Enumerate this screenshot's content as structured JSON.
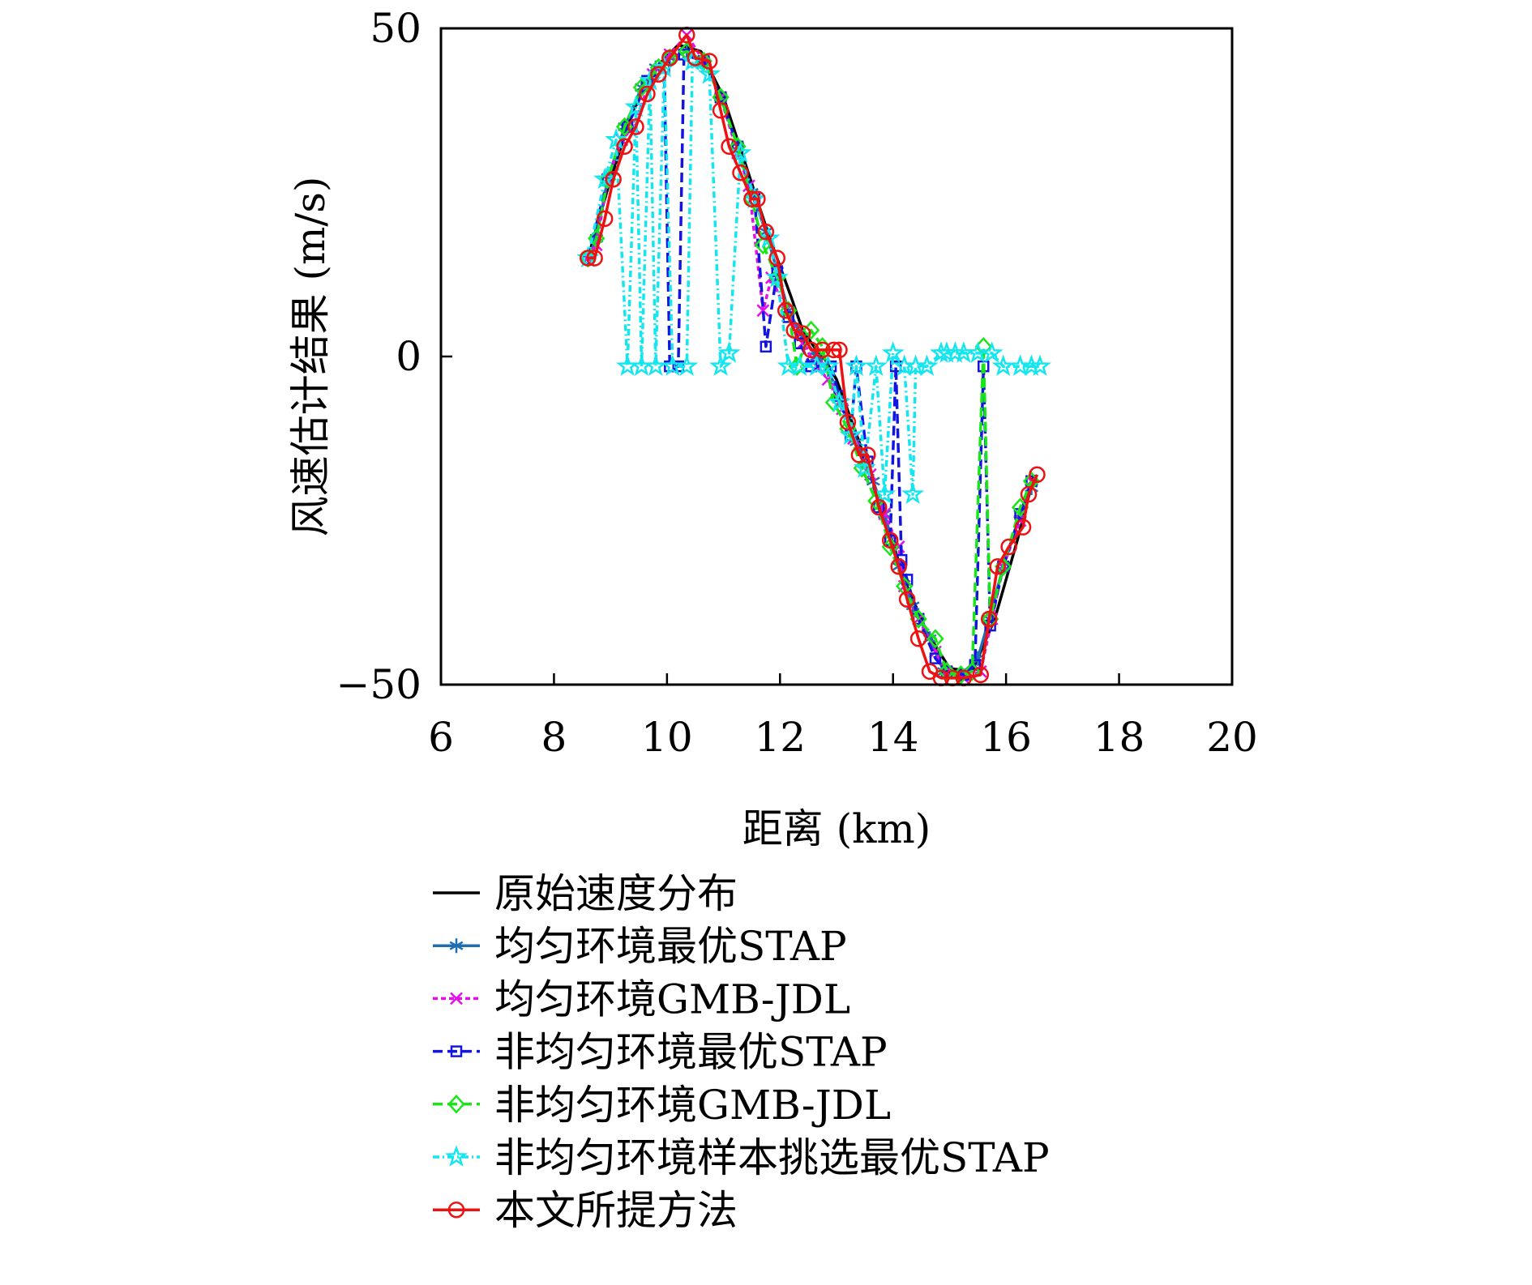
{
  "chart_data": {
    "type": "line",
    "title": "",
    "xlabel": "距离 (km)",
    "ylabel": "风速估计结果 (m/s)",
    "xlim": [
      6,
      20
    ],
    "ylim": [
      -50,
      50
    ],
    "xticks": [
      "6",
      "8",
      "10",
      "12",
      "14",
      "16",
      "18",
      "20"
    ],
    "yticks": [
      "−50",
      "0",
      "50"
    ],
    "grid": false,
    "legend_position": "below",
    "series": [
      {
        "name": "原始速度分布",
        "color": "#000000",
        "dash": "solid",
        "marker": "none",
        "points": [
          [
            8.6,
            15
          ],
          [
            9,
            27
          ],
          [
            9.4,
            37.5
          ],
          [
            9.8,
            44
          ],
          [
            10.2,
            47.5
          ],
          [
            10.6,
            46.5
          ],
          [
            11,
            39.5
          ],
          [
            11.4,
            29
          ],
          [
            11.8,
            18.5
          ],
          [
            12.2,
            9
          ],
          [
            12.4,
            4
          ],
          [
            12.6,
            1.5
          ],
          [
            12.8,
            -0.5
          ],
          [
            13,
            -3.5
          ],
          [
            13.4,
            -13
          ],
          [
            13.8,
            -23
          ],
          [
            14.2,
            -34
          ],
          [
            14.6,
            -42
          ],
          [
            15,
            -47.5
          ],
          [
            15.4,
            -48
          ],
          [
            15.8,
            -40
          ],
          [
            16.2,
            -28
          ],
          [
            16.5,
            -18
          ]
        ]
      },
      {
        "name": "均匀环境最优STAP",
        "color": "#1f6eb4",
        "dash": "solid",
        "marker": "star6",
        "points": [
          [
            8.6,
            15
          ],
          [
            8.75,
            18
          ],
          [
            8.95,
            27
          ],
          [
            9.25,
            35
          ],
          [
            9.55,
            41
          ],
          [
            9.8,
            44
          ],
          [
            10.05,
            45.5
          ],
          [
            10.35,
            46.5
          ],
          [
            10.65,
            45
          ],
          [
            10.95,
            39.5
          ],
          [
            11.25,
            32
          ],
          [
            11.5,
            25
          ],
          [
            11.75,
            19
          ],
          [
            11.95,
            13
          ],
          [
            12.15,
            7
          ],
          [
            12.4,
            3
          ],
          [
            12.65,
            0
          ],
          [
            12.85,
            -2
          ],
          [
            13.1,
            -7
          ],
          [
            13.35,
            -13
          ],
          [
            13.65,
            -19
          ],
          [
            13.85,
            -24
          ],
          [
            14.1,
            -32
          ],
          [
            14.35,
            -38
          ],
          [
            14.65,
            -43
          ],
          [
            14.9,
            -48
          ],
          [
            15.2,
            -48.5
          ],
          [
            15.5,
            -46
          ],
          [
            15.7,
            -40
          ],
          [
            15.95,
            -32
          ],
          [
            16.25,
            -24
          ],
          [
            16.45,
            -20
          ]
        ]
      },
      {
        "name": "均匀环境GMB-JDL",
        "color": "#e60ee6",
        "dash": "6,4",
        "marker": "x",
        "points": [
          [
            8.6,
            15
          ],
          [
            8.75,
            17
          ],
          [
            8.95,
            27
          ],
          [
            9.2,
            33
          ],
          [
            9.4,
            35
          ],
          [
            9.75,
            43
          ],
          [
            10.05,
            46
          ],
          [
            10.35,
            49
          ],
          [
            10.65,
            45
          ],
          [
            10.95,
            39.5
          ],
          [
            11.25,
            31
          ],
          [
            11.45,
            26
          ],
          [
            11.7,
            7
          ],
          [
            11.85,
            12
          ],
          [
            12.1,
            7
          ],
          [
            12.4,
            2
          ],
          [
            12.65,
            -1.5
          ],
          [
            12.85,
            -3.5
          ],
          [
            13.1,
            -8
          ],
          [
            13.3,
            -12.5
          ],
          [
            13.6,
            -18
          ],
          [
            13.85,
            -24
          ],
          [
            14.1,
            -29
          ],
          [
            14.2,
            -35
          ],
          [
            14.45,
            -40
          ],
          [
            14.75,
            -45
          ],
          [
            14.95,
            -48
          ],
          [
            15.25,
            -49
          ],
          [
            15.55,
            -48
          ],
          [
            15.75,
            -40
          ],
          [
            15.95,
            -32
          ],
          [
            16.25,
            -25
          ],
          [
            16.45,
            -19
          ]
        ]
      },
      {
        "name": "非均匀环境最优STAP",
        "color": "#1414e0",
        "dash": "12,6",
        "marker": "square",
        "points": [
          [
            8.6,
            15
          ],
          [
            8.95,
            27
          ],
          [
            9.3,
            35
          ],
          [
            9.65,
            42
          ],
          [
            9.95,
            44
          ],
          [
            10.05,
            -1.5
          ],
          [
            10.2,
            -1.5
          ],
          [
            10.3,
            46
          ],
          [
            10.65,
            45
          ],
          [
            10.95,
            39.5
          ],
          [
            11.25,
            32
          ],
          [
            11.55,
            24
          ],
          [
            11.75,
            1.5
          ],
          [
            11.95,
            13
          ],
          [
            12.15,
            6
          ],
          [
            12.35,
            2
          ],
          [
            12.55,
            -1.5
          ],
          [
            12.9,
            -1.5
          ],
          [
            13.05,
            -6
          ],
          [
            13.25,
            -12
          ],
          [
            13.35,
            -1.5
          ],
          [
            13.55,
            -16
          ],
          [
            13.75,
            -23
          ],
          [
            13.95,
            -28
          ],
          [
            14.05,
            -1.5
          ],
          [
            14.15,
            -31
          ],
          [
            14.25,
            -34
          ],
          [
            14.45,
            -40
          ],
          [
            14.75,
            -46
          ],
          [
            14.95,
            -48
          ],
          [
            15.25,
            -48.5
          ],
          [
            15.45,
            -47
          ],
          [
            15.6,
            -1.5
          ],
          [
            15.72,
            -41
          ],
          [
            15.95,
            -32
          ],
          [
            16.25,
            -24
          ],
          [
            16.45,
            -19
          ]
        ]
      },
      {
        "name": "非均匀环境GMB-JDL",
        "color": "#19e619",
        "dash": "12,6",
        "marker": "diamond",
        "points": [
          [
            8.6,
            15
          ],
          [
            8.75,
            18
          ],
          [
            8.95,
            27
          ],
          [
            9.25,
            35
          ],
          [
            9.55,
            41
          ],
          [
            9.85,
            44
          ],
          [
            10.05,
            45.5
          ],
          [
            10.35,
            46.5
          ],
          [
            10.65,
            45
          ],
          [
            10.95,
            39.5
          ],
          [
            11.25,
            32
          ],
          [
            11.5,
            24
          ],
          [
            11.7,
            17
          ],
          [
            11.95,
            12
          ],
          [
            12.15,
            7
          ],
          [
            12.3,
            -1.5
          ],
          [
            12.55,
            4
          ],
          [
            12.75,
            1.5
          ],
          [
            12.95,
            -7
          ],
          [
            13.2,
            -11
          ],
          [
            13.45,
            -17
          ],
          [
            13.7,
            -22
          ],
          [
            13.95,
            -29
          ],
          [
            14.2,
            -35
          ],
          [
            14.45,
            -40
          ],
          [
            14.75,
            -43
          ],
          [
            14.95,
            -48
          ],
          [
            15.2,
            -48.5
          ],
          [
            15.4,
            -48
          ],
          [
            15.6,
            1.5
          ],
          [
            15.72,
            -40
          ],
          [
            15.95,
            -32
          ],
          [
            16.25,
            -23
          ],
          [
            16.45,
            -19
          ]
        ]
      },
      {
        "name": "非均匀环境样本挑选最优STAP",
        "color": "#14e6f0",
        "dash": "8,4,2,4",
        "marker": "star5",
        "points": [
          [
            8.6,
            15
          ],
          [
            8.9,
            27
          ],
          [
            9.1,
            33
          ],
          [
            9.3,
            -1.5
          ],
          [
            9.45,
            38
          ],
          [
            9.55,
            -1.5
          ],
          [
            9.7,
            42
          ],
          [
            9.8,
            -1.5
          ],
          [
            9.95,
            44
          ],
          [
            10.1,
            -1.5
          ],
          [
            10.35,
            -1.5
          ],
          [
            10.45,
            45
          ],
          [
            10.75,
            43
          ],
          [
            10.95,
            -1.5
          ],
          [
            11.1,
            0.5
          ],
          [
            11.3,
            31
          ],
          [
            11.55,
            24
          ],
          [
            11.8,
            18
          ],
          [
            11.95,
            12
          ],
          [
            12.15,
            -1.5
          ],
          [
            12.35,
            -1.5
          ],
          [
            12.65,
            -1.5
          ],
          [
            12.85,
            -1.5
          ],
          [
            13.05,
            -7
          ],
          [
            13.25,
            -12
          ],
          [
            13.35,
            -1.5
          ],
          [
            13.5,
            -17
          ],
          [
            13.7,
            -1.5
          ],
          [
            13.85,
            -21
          ],
          [
            14.0,
            0.5
          ],
          [
            14.2,
            -1.5
          ],
          [
            14.35,
            -21
          ],
          [
            14.4,
            -1.5
          ],
          [
            14.6,
            -1.5
          ],
          [
            14.85,
            0.5
          ],
          [
            14.95,
            0.5
          ],
          [
            15.1,
            0.5
          ],
          [
            15.25,
            0.5
          ],
          [
            15.5,
            0.5
          ],
          [
            15.75,
            0.5
          ],
          [
            15.95,
            -1.5
          ],
          [
            16.25,
            -1.5
          ],
          [
            16.45,
            -1.5
          ],
          [
            16.6,
            -1.5
          ]
        ]
      },
      {
        "name": "本文所提方法",
        "color": "#ee1111",
        "dash": "solid",
        "marker": "circle",
        "points": [
          [
            8.6,
            15
          ],
          [
            8.72,
            15
          ],
          [
            8.9,
            21
          ],
          [
            9.05,
            27
          ],
          [
            9.25,
            32
          ],
          [
            9.45,
            35
          ],
          [
            9.65,
            40
          ],
          [
            9.85,
            43
          ],
          [
            10.05,
            45.5
          ],
          [
            10.35,
            49
          ],
          [
            10.5,
            45.5
          ],
          [
            10.75,
            45
          ],
          [
            10.95,
            37.5
          ],
          [
            11.1,
            32
          ],
          [
            11.3,
            28
          ],
          [
            11.5,
            24
          ],
          [
            11.6,
            24
          ],
          [
            11.75,
            19
          ],
          [
            11.95,
            15
          ],
          [
            12.1,
            7
          ],
          [
            12.25,
            4
          ],
          [
            12.4,
            3.5
          ],
          [
            12.55,
            1
          ],
          [
            12.75,
            1
          ],
          [
            12.95,
            1
          ],
          [
            13.05,
            1
          ],
          [
            13.2,
            -10
          ],
          [
            13.4,
            -15
          ],
          [
            13.55,
            -15
          ],
          [
            13.75,
            -23
          ],
          [
            13.95,
            -28
          ],
          [
            14.1,
            -32
          ],
          [
            14.25,
            -37
          ],
          [
            14.45,
            -43
          ],
          [
            14.65,
            -48
          ],
          [
            14.85,
            -49
          ],
          [
            15.05,
            -49
          ],
          [
            15.25,
            -49
          ],
          [
            15.55,
            -48.5
          ],
          [
            15.7,
            -40
          ],
          [
            15.85,
            -32
          ],
          [
            16.05,
            -29
          ],
          [
            16.3,
            -26
          ],
          [
            16.4,
            -21
          ],
          [
            16.55,
            -18
          ]
        ]
      }
    ]
  }
}
